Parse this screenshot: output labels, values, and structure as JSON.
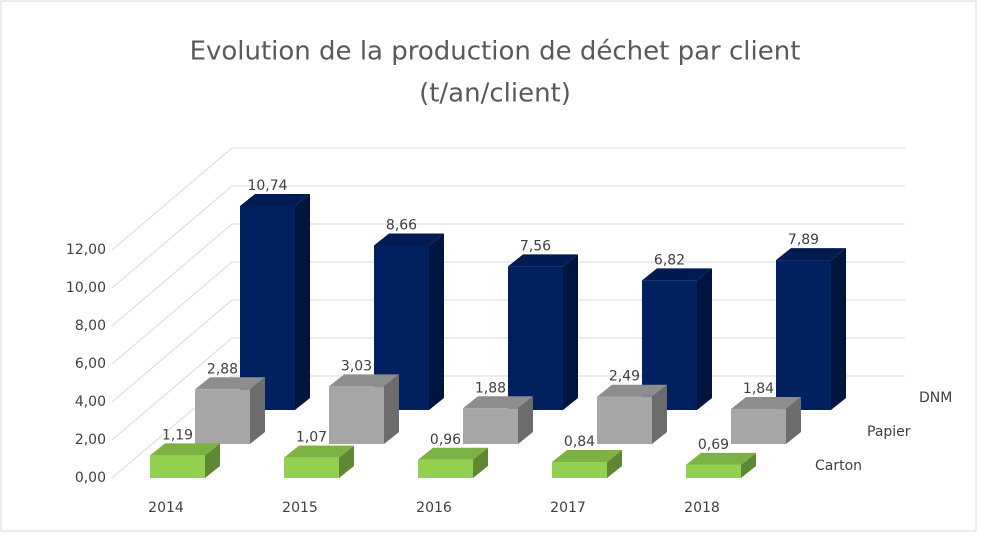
{
  "chart_data": {
    "type": "bar3d",
    "title": "Evolution de la production de déchet par client",
    "subtitle": "(t/an/client)",
    "categories": [
      "2014",
      "2015",
      "2016",
      "2017",
      "2018"
    ],
    "series": [
      {
        "name": "Carton",
        "color": "#92d050",
        "values": [
          1.19,
          1.07,
          0.96,
          0.84,
          0.69
        ],
        "value_labels": [
          "1,19",
          "1,07",
          "0,96",
          "0,84",
          "0,69"
        ]
      },
      {
        "name": "Papier",
        "color": "#a6a6a6",
        "values": [
          2.88,
          3.03,
          1.88,
          2.49,
          1.84
        ],
        "value_labels": [
          "2,88",
          "3,03",
          "1,88",
          "2,49",
          "1,84"
        ]
      },
      {
        "name": "DNM",
        "color": "#002060",
        "values": [
          10.74,
          8.66,
          7.56,
          6.82,
          7.89
        ],
        "value_labels": [
          "10,74",
          "8,66",
          "7,56",
          "6,82",
          "7,89"
        ]
      }
    ],
    "ylim": [
      0,
      12
    ],
    "yticks": [
      {
        "value": 0,
        "label": "0,00"
      },
      {
        "value": 2,
        "label": "2,00"
      },
      {
        "value": 4,
        "label": "4,00"
      },
      {
        "value": 6,
        "label": "6,00"
      },
      {
        "value": 8,
        "label": "8,00"
      },
      {
        "value": 10,
        "label": "10,00"
      },
      {
        "value": 12,
        "label": "12,00"
      }
    ],
    "grid": true
  }
}
